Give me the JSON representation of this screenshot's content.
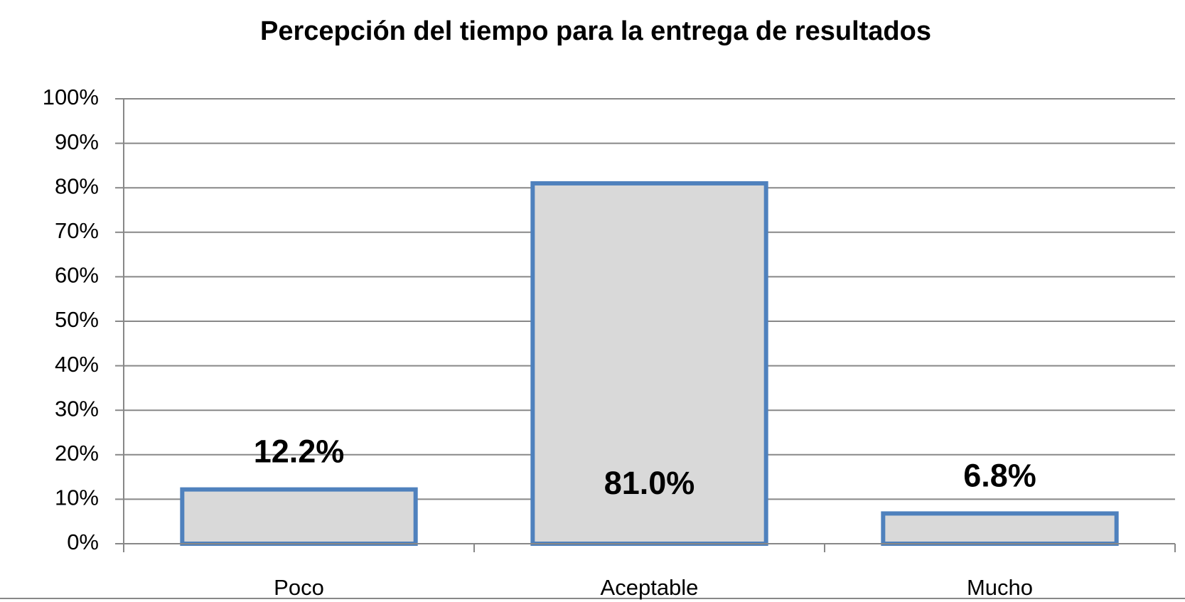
{
  "chart_data": {
    "type": "bar",
    "title": "Percepción del tiempo para la entrega de resultados",
    "categories": [
      "Poco",
      "Aceptable",
      "Mucho"
    ],
    "values": [
      12.2,
      81.0,
      6.8
    ],
    "value_labels": [
      "12.2%",
      "81.0%",
      "6.8%"
    ],
    "color": "#d9d9d9",
    "edge_color": "#4f81bd",
    "ylim": [
      0,
      100
    ],
    "yticks": [
      {
        "value": 0,
        "label": "0%"
      },
      {
        "value": 10,
        "label": "10%"
      },
      {
        "value": 20,
        "label": "20%"
      },
      {
        "value": 30,
        "label": "30%"
      },
      {
        "value": 40,
        "label": "40%"
      },
      {
        "value": 50,
        "label": "50%"
      },
      {
        "value": 60,
        "label": "60%"
      },
      {
        "value": 70,
        "label": "70%"
      },
      {
        "value": 80,
        "label": "80%"
      },
      {
        "value": 90,
        "label": "90%"
      },
      {
        "value": 100,
        "label": "100%"
      }
    ],
    "grid": true
  }
}
